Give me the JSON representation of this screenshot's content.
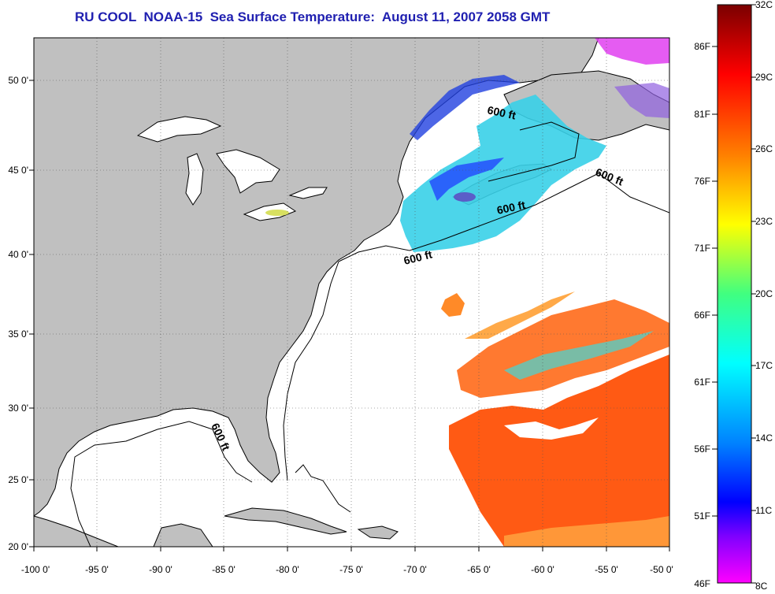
{
  "title": "RU COOL  NOAA-15  Sea Surface Temperature:  August 11, 2007 2058 GMT",
  "map": {
    "lon_labels": [
      "-100 0'",
      "-95 0'",
      "-90 0'",
      "-85 0'",
      "-80 0'",
      "-75 0'",
      "-70 0'",
      "-65 0'",
      "-60 0'",
      "-55 0'",
      "-50 0'"
    ],
    "lat_labels": [
      "50 0'",
      "45 0'",
      "40 0'",
      "35 0'",
      "30 0'",
      "25 0'",
      "20 0'"
    ],
    "depth_contour_label": "600 ft",
    "land_color": "#c0c0c0"
  },
  "colorbar": {
    "celsius_labels": [
      "32C",
      "29C",
      "26C",
      "23C",
      "20C",
      "17C",
      "14C",
      "11C",
      "8C"
    ],
    "fahrenheit_labels": [
      "86F",
      "81F",
      "76F",
      "71F",
      "66F",
      "61F",
      "56F",
      "51F",
      "46F"
    ]
  }
}
